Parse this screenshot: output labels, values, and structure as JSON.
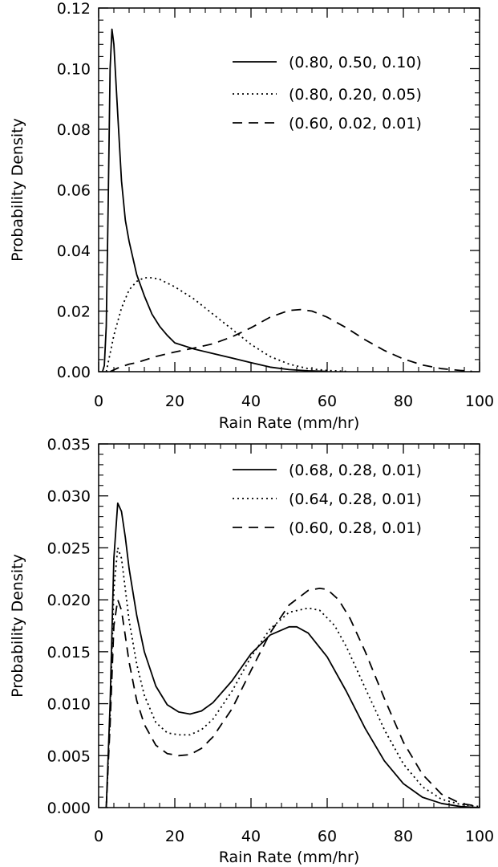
{
  "chart_data": [
    {
      "type": "line",
      "xlabel": "Rain Rate (mm/hr)",
      "ylabel": "Probability Density",
      "xlim": [
        0,
        100
      ],
      "ylim": [
        0,
        0.12
      ],
      "xticks": [
        "0",
        "20",
        "40",
        "60",
        "80",
        "100"
      ],
      "yticks": [
        "0.00",
        "0.02",
        "0.04",
        "0.06",
        "0.08",
        "0.10",
        "0.12"
      ],
      "grid": false,
      "legend_position": "top-right",
      "series": [
        {
          "name": "(0.80, 0.50, 0.10)",
          "style": "solid",
          "x": [
            1,
            1.5,
            2,
            2.5,
            3,
            3.5,
            4,
            5,
            6,
            7,
            8,
            10,
            12,
            14,
            16,
            18,
            20,
            25,
            30,
            35,
            40,
            45,
            50,
            55,
            60
          ],
          "y": [
            0.0,
            0.002,
            0.015,
            0.055,
            0.1,
            0.113,
            0.108,
            0.085,
            0.063,
            0.05,
            0.043,
            0.032,
            0.025,
            0.019,
            0.015,
            0.012,
            0.0095,
            0.0075,
            0.006,
            0.0045,
            0.003,
            0.0015,
            0.0007,
            0.0003,
            0.0001
          ]
        },
        {
          "name": "(0.80, 0.20, 0.05)",
          "style": "dotted",
          "x": [
            2,
            3,
            4,
            6,
            8,
            10,
            12,
            14,
            16,
            20,
            25,
            30,
            35,
            40,
            45,
            50,
            55,
            60,
            65
          ],
          "y": [
            0.0,
            0.006,
            0.012,
            0.021,
            0.027,
            0.0298,
            0.031,
            0.031,
            0.0305,
            0.028,
            0.024,
            0.019,
            0.014,
            0.009,
            0.005,
            0.0025,
            0.001,
            0.0004,
            0.0001
          ]
        },
        {
          "name": "(0.60, 0.02, 0.01)",
          "style": "dashed",
          "x": [
            3,
            5,
            8,
            10,
            15,
            20,
            25,
            30,
            35,
            40,
            45,
            50,
            53,
            56,
            60,
            65,
            70,
            75,
            80,
            85,
            90,
            95,
            98
          ],
          "y": [
            0.0,
            0.0012,
            0.0025,
            0.003,
            0.005,
            0.0065,
            0.0078,
            0.0092,
            0.0115,
            0.0145,
            0.018,
            0.0202,
            0.0205,
            0.02,
            0.018,
            0.0145,
            0.0105,
            0.007,
            0.0042,
            0.0022,
            0.001,
            0.0004,
            0.0001
          ]
        }
      ]
    },
    {
      "type": "line",
      "xlabel": "Rain Rate (mm/hr)",
      "ylabel": "Probability Density",
      "xlim": [
        0,
        100
      ],
      "ylim": [
        0,
        0.035
      ],
      "xticks": [
        "0",
        "20",
        "40",
        "60",
        "80",
        "100"
      ],
      "yticks": [
        "0.000",
        "0.005",
        "0.010",
        "0.015",
        "0.020",
        "0.025",
        "0.030",
        "0.035"
      ],
      "grid": false,
      "legend_position": "top-right",
      "series": [
        {
          "name": "(0.68, 0.28, 0.01)",
          "style": "solid",
          "x": [
            2,
            3,
            4,
            5,
            6,
            7,
            8,
            10,
            12,
            15,
            18,
            21,
            24,
            27,
            30,
            35,
            40,
            45,
            50,
            52,
            55,
            60,
            65,
            70,
            75,
            80,
            85,
            90,
            95,
            100
          ],
          "y": [
            0.0,
            0.01,
            0.024,
            0.0293,
            0.0285,
            0.026,
            0.023,
            0.0185,
            0.015,
            0.0117,
            0.0099,
            0.0092,
            0.009,
            0.0093,
            0.0101,
            0.0122,
            0.0148,
            0.0166,
            0.0174,
            0.0174,
            0.0168,
            0.0145,
            0.0112,
            0.0076,
            0.0045,
            0.0023,
            0.001,
            0.0004,
            0.0001,
            0.0
          ]
        },
        {
          "name": "(0.64, 0.28, 0.01)",
          "style": "dotted",
          "x": [
            2,
            3,
            4,
            5,
            6,
            7,
            8,
            10,
            12,
            15,
            18,
            21,
            24,
            27,
            30,
            35,
            40,
            45,
            50,
            55,
            58,
            62,
            65,
            70,
            75,
            80,
            85,
            90,
            95,
            100
          ],
          "y": [
            0.0,
            0.009,
            0.021,
            0.025,
            0.024,
            0.021,
            0.018,
            0.0138,
            0.0108,
            0.0082,
            0.0072,
            0.007,
            0.007,
            0.0075,
            0.0085,
            0.0112,
            0.0145,
            0.0172,
            0.0188,
            0.0192,
            0.019,
            0.0175,
            0.0155,
            0.0115,
            0.0075,
            0.0042,
            0.002,
            0.0008,
            0.0003,
            0.0001
          ]
        },
        {
          "name": "(0.60, 0.28, 0.01)",
          "style": "dashed",
          "x": [
            2,
            3,
            4,
            5,
            6,
            7,
            8,
            10,
            12,
            15,
            18,
            21,
            24,
            27,
            30,
            35,
            40,
            45,
            50,
            55,
            58,
            60,
            63,
            66,
            70,
            75,
            80,
            85,
            90,
            95,
            100
          ],
          "y": [
            0.0,
            0.008,
            0.0175,
            0.02,
            0.019,
            0.0165,
            0.014,
            0.0103,
            0.008,
            0.006,
            0.0052,
            0.005,
            0.0051,
            0.0057,
            0.0068,
            0.0095,
            0.0132,
            0.0168,
            0.0195,
            0.0209,
            0.0211,
            0.021,
            0.02,
            0.0182,
            0.015,
            0.0105,
            0.0063,
            0.0032,
            0.0013,
            0.0004,
            0.0001
          ]
        }
      ]
    }
  ]
}
